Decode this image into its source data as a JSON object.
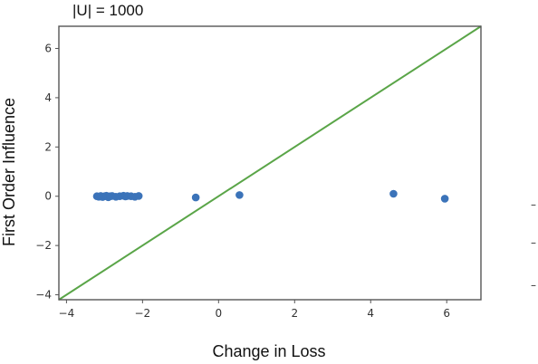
{
  "chart_data": {
    "type": "scatter",
    "title": "|U| = 1000",
    "xlabel": "Change in Loss",
    "ylabel": "First Order Influence",
    "xlim": [
      -4.2,
      6.9
    ],
    "ylim": [
      -4.2,
      6.9
    ],
    "xticks": [
      -4,
      -2,
      0,
      2,
      4,
      6
    ],
    "yticks": [
      -4,
      -2,
      0,
      2,
      4,
      6
    ],
    "xtick_labels": [
      "−4",
      "−2",
      "0",
      "2",
      "4",
      "6"
    ],
    "ytick_labels": [
      "−4",
      "−2",
      "0",
      "2",
      "4",
      "6"
    ],
    "grid": false,
    "series": [
      {
        "values": [
          {
            "x": -3.2,
            "y": 0.0
          },
          {
            "x": -3.15,
            "y": -0.02
          },
          {
            "x": -3.1,
            "y": 0.01
          },
          {
            "x": -3.05,
            "y": -0.03
          },
          {
            "x": -3.0,
            "y": 0.0
          },
          {
            "x": -2.95,
            "y": 0.02
          },
          {
            "x": -2.9,
            "y": -0.04
          },
          {
            "x": -2.85,
            "y": 0.0
          },
          {
            "x": -2.8,
            "y": 0.01
          },
          {
            "x": -2.7,
            "y": -0.02
          },
          {
            "x": -2.6,
            "y": 0.0
          },
          {
            "x": -2.5,
            "y": 0.02
          },
          {
            "x": -2.45,
            "y": -0.01
          },
          {
            "x": -2.4,
            "y": 0.01
          },
          {
            "x": -2.3,
            "y": 0.0
          },
          {
            "x": -2.2,
            "y": -0.02
          },
          {
            "x": -2.1,
            "y": 0.01
          },
          {
            "x": -0.6,
            "y": -0.05
          },
          {
            "x": 0.55,
            "y": 0.05
          },
          {
            "x": 4.6,
            "y": 0.1
          },
          {
            "x": 5.95,
            "y": -0.1
          }
        ]
      }
    ],
    "reference_line": {
      "from": [
        -4.2,
        -4.2
      ],
      "to": [
        6.9,
        6.9
      ]
    },
    "colors": {
      "points": "#3b73b9",
      "line": "#5aa548"
    }
  },
  "right_markers": [
    "–",
    "–",
    "–"
  ]
}
